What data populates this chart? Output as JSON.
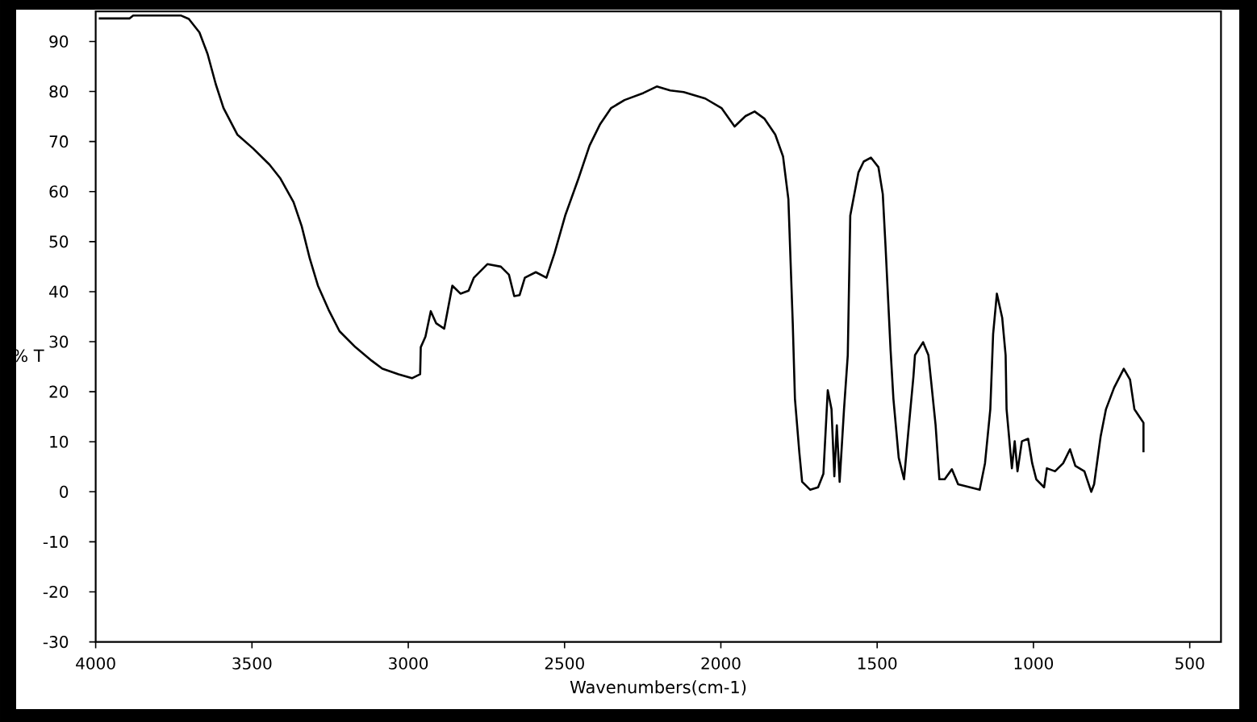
{
  "chart_data": {
    "type": "line",
    "xlabel": "Wavenumbers(cm-1)",
    "ylabel": "% T",
    "x": [
      3990,
      3892,
      3880,
      3728,
      3702,
      3668,
      3642,
      3616,
      3591,
      3547,
      3496,
      3444,
      3410,
      3367,
      3341,
      3315,
      3289,
      3255,
      3220,
      3169,
      3117,
      3083,
      3031,
      2988,
      2962,
      2960,
      2945,
      2928,
      2911,
      2885,
      2859,
      2833,
      2807,
      2790,
      2747,
      2704,
      2678,
      2661,
      2644,
      2627,
      2592,
      2558,
      2532,
      2498,
      2455,
      2420,
      2386,
      2351,
      2308,
      2248,
      2205,
      2162,
      2119,
      2050,
      1998,
      1956,
      1921,
      1892,
      1861,
      1826,
      1801,
      1784,
      1770,
      1763,
      1749,
      1740,
      1714,
      1689,
      1672,
      1658,
      1646,
      1637,
      1629,
      1620,
      1606,
      1594,
      1586,
      1560,
      1543,
      1520,
      1496,
      1482,
      1473,
      1457,
      1448,
      1431,
      1414,
      1400,
      1384,
      1379,
      1353,
      1336,
      1327,
      1313,
      1301,
      1284,
      1261,
      1241,
      1172,
      1155,
      1138,
      1129,
      1117,
      1100,
      1089,
      1086,
      1069,
      1060,
      1051,
      1037,
      1017,
      1004,
      991,
      966,
      957,
      931,
      905,
      883,
      866,
      837,
      815,
      806,
      785,
      768,
      742,
      711,
      691,
      677,
      660,
      648,
      648
    ],
    "values": [
      94.6,
      94.6,
      95.2,
      95.2,
      94.5,
      91.8,
      87.5,
      81.5,
      76.7,
      71.4,
      68.6,
      65.4,
      62.7,
      57.9,
      53.1,
      46.6,
      41.2,
      36.4,
      32.1,
      28.9,
      26.2,
      24.6,
      23.5,
      22.7,
      23.5,
      28.9,
      31.0,
      36.1,
      33.7,
      32.6,
      41.2,
      39.6,
      40.2,
      42.8,
      45.5,
      45.0,
      43.4,
      39.1,
      39.3,
      42.8,
      43.9,
      42.8,
      47.7,
      55.2,
      62.7,
      69.2,
      73.5,
      76.7,
      78.3,
      79.7,
      81.0,
      80.2,
      79.9,
      78.6,
      76.7,
      73.0,
      75.1,
      76.0,
      74.6,
      71.4,
      67.0,
      58.5,
      33.7,
      18.6,
      7.9,
      2.0,
      0.4,
      0.9,
      3.6,
      20.3,
      16.5,
      3.1,
      13.3,
      2.0,
      16.5,
      27.3,
      55.2,
      63.8,
      66.0,
      66.8,
      64.9,
      59.5,
      48.8,
      28.3,
      18.6,
      6.8,
      2.5,
      12.2,
      23.0,
      27.3,
      29.9,
      27.3,
      21.9,
      13.3,
      2.5,
      2.5,
      4.5,
      1.5,
      0.4,
      5.7,
      16.5,
      31.5,
      39.6,
      34.8,
      27.3,
      16.5,
      4.7,
      10.1,
      4.1,
      10.1,
      10.6,
      5.7,
      2.5,
      0.9,
      4.7,
      4.1,
      5.7,
      8.5,
      5.2,
      4.1,
      0.0,
      1.5,
      11.1,
      16.5,
      20.8,
      24.6,
      22.4,
      16.5,
      14.9,
      13.8,
      7.9
    ],
    "color": "#000000",
    "marker": "none",
    "line_style": "solid",
    "xlim": [
      4000,
      400
    ],
    "ylim": [
      -30,
      96
    ],
    "xticks": [
      4000,
      3500,
      3000,
      2500,
      2000,
      1500,
      1000,
      500
    ],
    "yticks": [
      -30,
      -20,
      -10,
      0,
      10,
      20,
      30,
      40,
      50,
      60,
      70,
      80,
      90
    ]
  }
}
